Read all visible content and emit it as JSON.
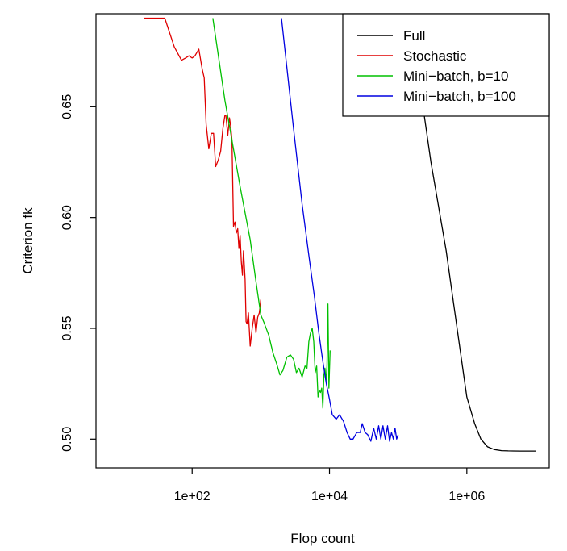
{
  "chart_data": {
    "type": "line",
    "title": "",
    "xlabel": "Flop count",
    "ylabel": "Criterion fk",
    "x_scale": "log10",
    "xlim": [
      3.98,
      15850000
    ],
    "ylim": [
      0.487,
      0.692
    ],
    "x_ticks": [
      {
        "value": 100,
        "label": "1e+02"
      },
      {
        "value": 10000,
        "label": "1e+04"
      },
      {
        "value": 1000000,
        "label": "1e+06"
      }
    ],
    "y_ticks": [
      {
        "value": 0.5,
        "label": "0.50"
      },
      {
        "value": 0.55,
        "label": "0.55"
      },
      {
        "value": 0.6,
        "label": "0.60"
      },
      {
        "value": 0.65,
        "label": "0.65"
      }
    ],
    "grid": false,
    "legend_position": "top-right",
    "series": [
      {
        "name": "Full",
        "color": "#000000",
        "x": [
          150000,
          300000,
          500000,
          800000,
          1000000,
          1300000,
          1600000,
          2000000,
          2500000,
          3200000,
          4000000,
          6000000,
          10000000
        ],
        "y": [
          0.69,
          0.625,
          0.585,
          0.54,
          0.519,
          0.507,
          0.5,
          0.4965,
          0.4953,
          0.4948,
          0.4947,
          0.4946,
          0.4946
        ]
      },
      {
        "name": "Stochastic",
        "color": "#df0000",
        "x": [
          20,
          30,
          40,
          55,
          70,
          80,
          90,
          100,
          110,
          125,
          140,
          150,
          160,
          175,
          190,
          205,
          220,
          240,
          260,
          280,
          300,
          310,
          330,
          350,
          365,
          380,
          400,
          420,
          440,
          460,
          480,
          500,
          520,
          540,
          560,
          590,
          610,
          630,
          660,
          700,
          750,
          800,
          850,
          900,
          950,
          1000
        ],
        "y": [
          0.69,
          0.69,
          0.69,
          0.677,
          0.671,
          0.672,
          0.673,
          0.672,
          0.673,
          0.676,
          0.667,
          0.663,
          0.642,
          0.631,
          0.638,
          0.638,
          0.623,
          0.626,
          0.63,
          0.64,
          0.646,
          0.646,
          0.637,
          0.645,
          0.641,
          0.635,
          0.596,
          0.598,
          0.593,
          0.595,
          0.586,
          0.592,
          0.58,
          0.574,
          0.585,
          0.572,
          0.553,
          0.552,
          0.557,
          0.542,
          0.55,
          0.556,
          0.548,
          0.555,
          0.557,
          0.563
        ]
      },
      {
        "name": "Mini−batch, b=10",
        "color": "#00c000",
        "x": [
          200,
          300,
          500,
          700,
          850,
          1000,
          1100,
          1300,
          1500,
          1700,
          1900,
          2100,
          2400,
          2700,
          3000,
          3300,
          3600,
          4000,
          4400,
          4700,
          5000,
          5300,
          5600,
          5900,
          6200,
          6500,
          6800,
          7100,
          7400,
          7700,
          8000,
          8300,
          8600,
          8900,
          9200,
          9500,
          9800,
          10200
        ],
        "y": [
          0.69,
          0.653,
          0.614,
          0.59,
          0.571,
          0.556,
          0.553,
          0.547,
          0.539,
          0.534,
          0.529,
          0.531,
          0.537,
          0.538,
          0.536,
          0.53,
          0.532,
          0.528,
          0.533,
          0.532,
          0.544,
          0.548,
          0.55,
          0.544,
          0.53,
          0.533,
          0.519,
          0.522,
          0.521,
          0.523,
          0.514,
          0.529,
          0.532,
          0.526,
          0.533,
          0.561,
          0.523,
          0.54
        ]
      },
      {
        "name": "Mini−batch, b=100",
        "color": "#0000e0",
        "x": [
          2000,
          3000,
          4000,
          5000,
          6000,
          7000,
          8000,
          9000,
          10000,
          11000,
          12500,
          14000,
          16000,
          18000,
          20000,
          22000,
          25000,
          28000,
          30000,
          33000,
          36000,
          40000,
          44000,
          48000,
          52000,
          56000,
          60000,
          65000,
          70000,
          75000,
          80000,
          85000,
          90000,
          95000,
          100000
        ],
        "y": [
          0.69,
          0.64,
          0.606,
          0.583,
          0.565,
          0.548,
          0.535,
          0.525,
          0.518,
          0.511,
          0.509,
          0.511,
          0.508,
          0.503,
          0.5,
          0.5,
          0.503,
          0.503,
          0.507,
          0.503,
          0.502,
          0.499,
          0.505,
          0.5,
          0.506,
          0.5,
          0.506,
          0.5,
          0.506,
          0.499,
          0.503,
          0.5,
          0.505,
          0.5,
          0.502
        ]
      }
    ]
  }
}
